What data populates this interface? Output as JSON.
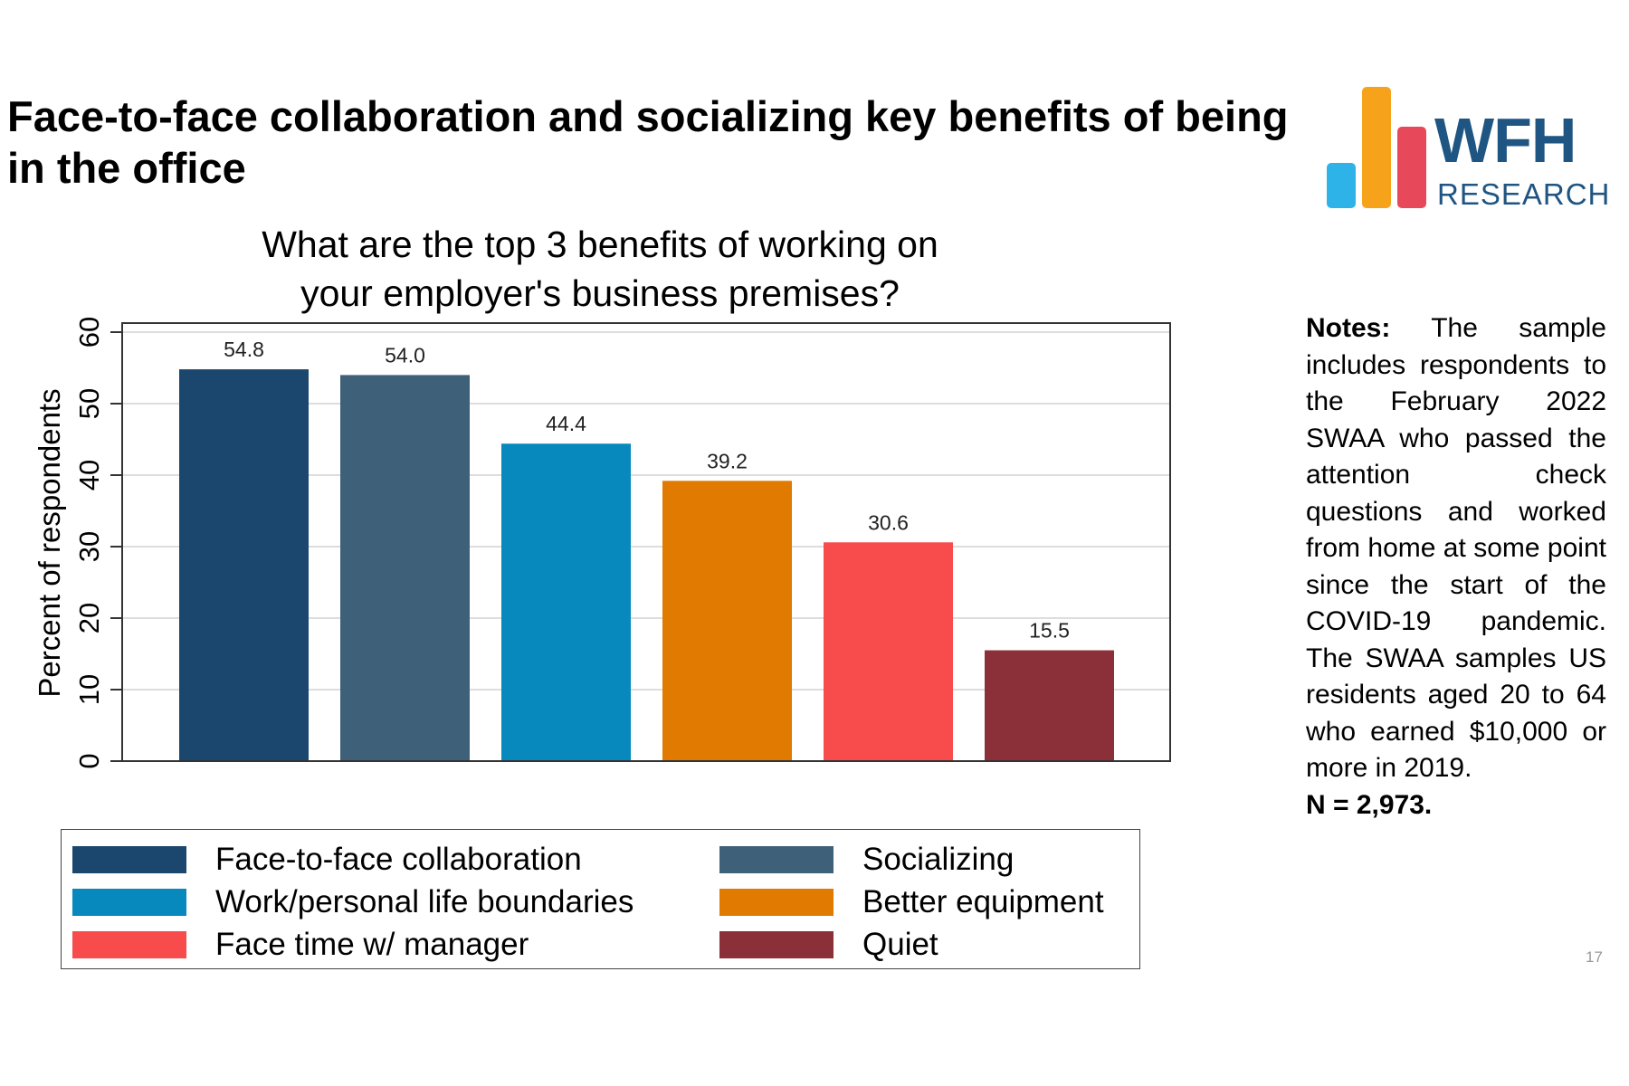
{
  "slide": {
    "title": "Face-to-face collaboration and socializing key benefits of being in the office",
    "page_number": "17"
  },
  "logo": {
    "text_top": "WFH",
    "text_bottom": "RESEARCH",
    "bar_colors": [
      "#2db3e8",
      "#f7a21b",
      "#e8495a"
    ]
  },
  "notes": {
    "label": "Notes:",
    "text": "The sample includes respondents to the February 2022 SWAA who passed the attention check questions and worked from home at some point since the start of the COVID-19 pandemic. The SWAA samples US residents aged 20 to 64 who earned $10,000 or more in 2019.",
    "n": "N = 2,973."
  },
  "chart_data": {
    "type": "bar",
    "title": "What are the top 3 benefits of working on your employer's business premises?",
    "ylabel": "Percent of respondents",
    "xlabel": "",
    "ylim": [
      0,
      60
    ],
    "yticks": [
      "0",
      "10",
      "20",
      "30",
      "40",
      "50",
      "60"
    ],
    "grid": true,
    "legend_placement": "bottom",
    "categories": [
      "Face-to-face collaboration",
      "Socializing",
      "Work/personal life boundaries",
      "Better equipment",
      "Face time w/ manager",
      "Quiet"
    ],
    "values": [
      54.8,
      54.0,
      44.4,
      39.2,
      30.6,
      15.5
    ],
    "data_labels": [
      "54.8",
      "54.0",
      "44.4",
      "39.2",
      "30.6",
      "15.5"
    ],
    "colors": [
      "#1b466e",
      "#3e6179",
      "#0789bd",
      "#e07a00",
      "#f84c4c",
      "#8b3039"
    ]
  }
}
